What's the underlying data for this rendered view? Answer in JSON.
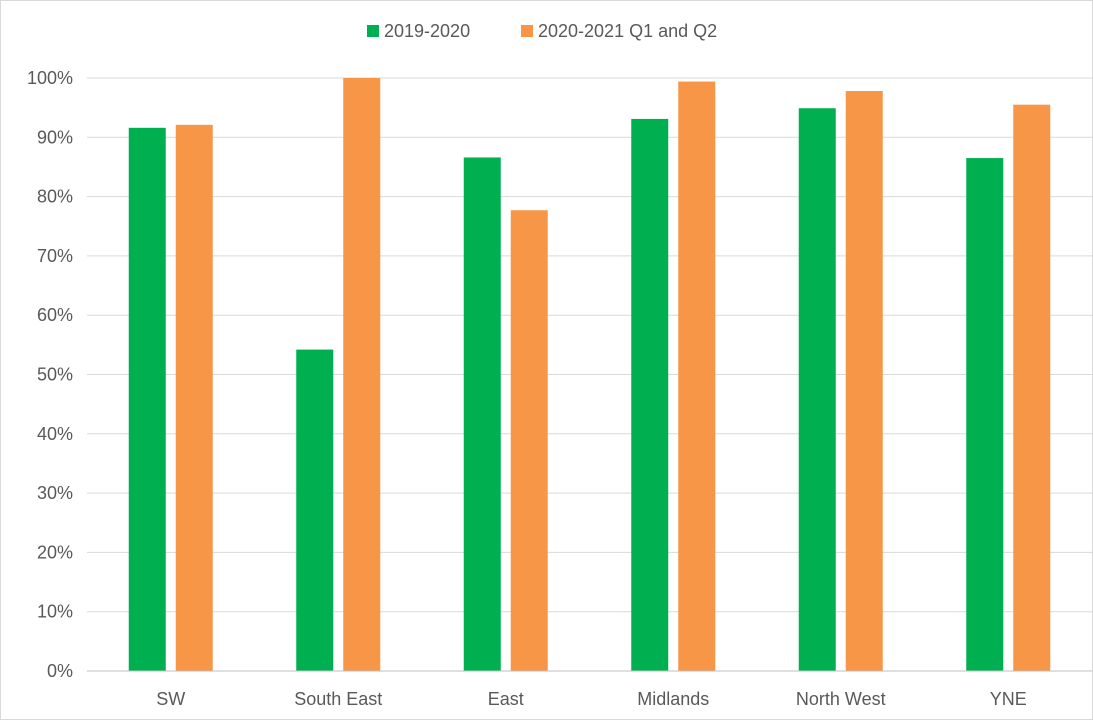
{
  "chart_data": {
    "type": "bar",
    "title": "",
    "xlabel": "",
    "ylabel": "",
    "categories": [
      "SW",
      "South East",
      "East",
      "Midlands",
      "North West",
      "YNE"
    ],
    "series": [
      {
        "name": "2019-2020",
        "color": "#00b050",
        "values": [
          0.916,
          0.542,
          0.866,
          0.931,
          0.949,
          0.865
        ]
      },
      {
        "name": "2020-2021 Q1 and Q2",
        "color": "#f79646",
        "values": [
          0.921,
          1.0,
          0.777,
          0.994,
          0.978,
          0.955
        ]
      }
    ],
    "ylim": [
      0,
      1
    ],
    "y_ticks": [
      0,
      0.1,
      0.2,
      0.3,
      0.4,
      0.5,
      0.6,
      0.7,
      0.8,
      0.9,
      1.0
    ],
    "y_tick_labels": [
      "0%",
      "10%",
      "20%",
      "30%",
      "40%",
      "50%",
      "60%",
      "70%",
      "80%",
      "90%",
      "100%"
    ],
    "grid": true,
    "legend_position": "top-center"
  }
}
